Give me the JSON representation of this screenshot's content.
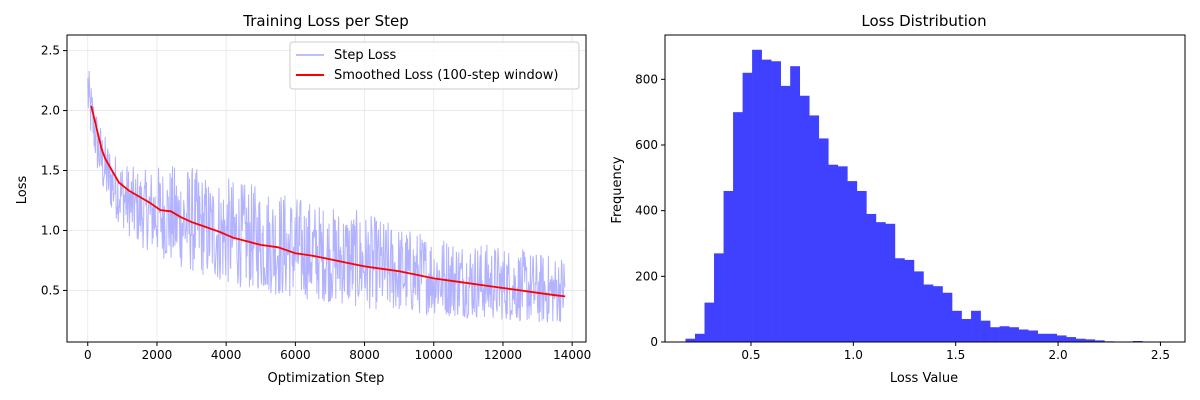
{
  "chart_data": [
    {
      "type": "line",
      "title": "Training Loss per Step",
      "xlabel": "Optimization Step",
      "ylabel": "Loss",
      "xlim": [
        -600,
        14400
      ],
      "ylim": [
        0.07,
        2.63
      ],
      "xticks": [
        0,
        2000,
        4000,
        6000,
        8000,
        10000,
        12000,
        14000
      ],
      "yticks": [
        0.5,
        1.0,
        1.5,
        2.0,
        2.5
      ],
      "grid": true,
      "legend_position": "top-right",
      "series": [
        {
          "name": "Step Loss",
          "color": "#aaaaff",
          "style": "noisy-band",
          "x": [
            0,
            50,
            100,
            200,
            300,
            500,
            800,
            1200,
            1600,
            2000,
            2500,
            3000,
            3500,
            4000,
            4500,
            5000,
            5500,
            6000,
            6500,
            7000,
            7500,
            8000,
            8500,
            9000,
            9500,
            10000,
            10500,
            11000,
            11500,
            12000,
            12500,
            13000,
            13500,
            13800
          ],
          "upper": [
            2.5,
            2.3,
            2.25,
            2.1,
            1.95,
            1.8,
            1.65,
            1.55,
            1.5,
            1.55,
            1.55,
            1.55,
            1.45,
            1.45,
            1.4,
            1.38,
            1.35,
            1.3,
            1.25,
            1.2,
            1.2,
            1.15,
            1.1,
            1.05,
            1.0,
            0.98,
            0.95,
            0.92,
            0.9,
            0.88,
            0.85,
            0.82,
            0.8,
            0.82
          ],
          "lower": [
            1.9,
            1.8,
            1.75,
            1.6,
            1.45,
            1.25,
            1.1,
            0.95,
            0.85,
            0.8,
            0.7,
            0.65,
            0.6,
            0.55,
            0.52,
            0.5,
            0.45,
            0.43,
            0.42,
            0.4,
            0.37,
            0.35,
            0.33,
            0.32,
            0.3,
            0.3,
            0.28,
            0.27,
            0.26,
            0.25,
            0.24,
            0.22,
            0.22,
            0.25
          ]
        },
        {
          "name": "Smoothed Loss (100-step window)",
          "color": "#ff0000",
          "x": [
            100,
            200,
            300,
            400,
            500,
            700,
            900,
            1200,
            1500,
            1800,
            2100,
            2400,
            2700,
            3000,
            3400,
            3800,
            4200,
            4600,
            5000,
            5500,
            6000,
            6500,
            7000,
            7500,
            8000,
            8500,
            9000,
            9500,
            10000,
            10500,
            11000,
            11500,
            12000,
            12500,
            13000,
            13500,
            13800
          ],
          "values": [
            2.04,
            1.92,
            1.8,
            1.68,
            1.6,
            1.5,
            1.4,
            1.33,
            1.28,
            1.23,
            1.17,
            1.16,
            1.11,
            1.07,
            1.03,
            0.99,
            0.94,
            0.91,
            0.88,
            0.86,
            0.81,
            0.79,
            0.76,
            0.73,
            0.7,
            0.68,
            0.66,
            0.63,
            0.6,
            0.58,
            0.56,
            0.54,
            0.52,
            0.5,
            0.48,
            0.46,
            0.45
          ]
        }
      ]
    },
    {
      "type": "bar",
      "subtype": "histogram",
      "title": "Loss Distribution",
      "xlabel": "Loss Value",
      "ylabel": "Frequency",
      "xlim": [
        0.08,
        2.62
      ],
      "ylim": [
        0,
        935
      ],
      "xticks": [
        0.5,
        1.0,
        1.5,
        2.0,
        2.5
      ],
      "yticks": [
        0,
        200,
        400,
        600,
        800
      ],
      "grid": false,
      "color": "#4040ff",
      "bin_start": 0.18,
      "bin_width": 0.0465,
      "values": [
        10,
        25,
        120,
        270,
        460,
        700,
        820,
        890,
        860,
        855,
        780,
        840,
        750,
        690,
        620,
        540,
        535,
        490,
        460,
        390,
        365,
        360,
        255,
        250,
        215,
        175,
        170,
        150,
        95,
        70,
        95,
        65,
        45,
        48,
        45,
        38,
        35,
        25,
        25,
        20,
        15,
        10,
        8,
        5,
        2,
        1,
        1,
        3
      ]
    }
  ]
}
